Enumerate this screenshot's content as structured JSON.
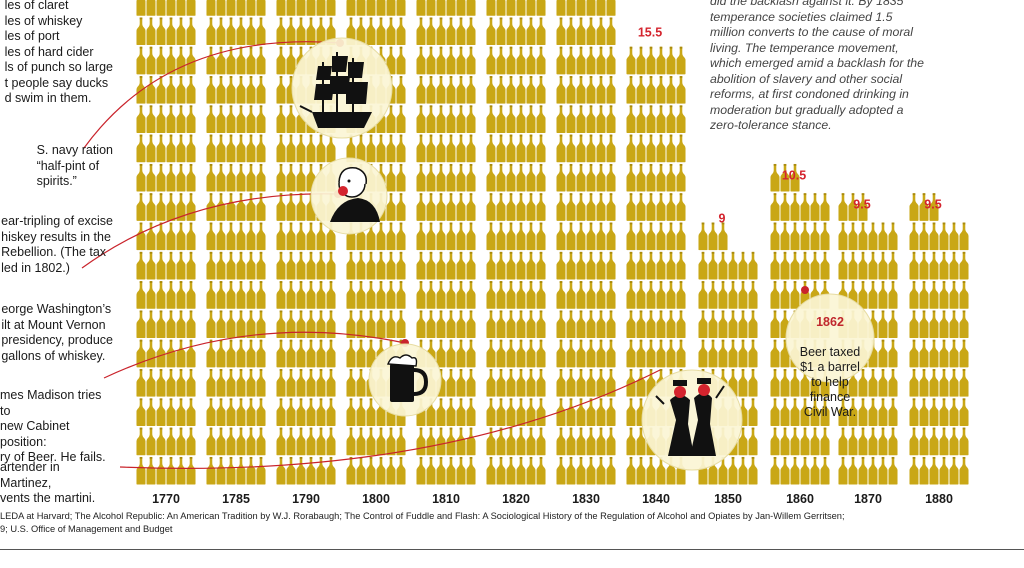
{
  "colors": {
    "bottle": "#c9a716",
    "bottle_dark": "#a88a0e",
    "label_red": "#d4242e",
    "line_red": "#c9232b",
    "circle_fill": "#fbf5d5",
    "text": "#1a1a1a"
  },
  "chart_data": {
    "type": "bar",
    "x": [
      "1770",
      "1785",
      "1790",
      "1800",
      "1810",
      "1820",
      "1830",
      "1840",
      "1850",
      "1860",
      "1870",
      "1880"
    ],
    "values": [
      null,
      null,
      null,
      null,
      null,
      null,
      null,
      15.5,
      9,
      10.5,
      9.5,
      9.5
    ],
    "value_labels": [
      "",
      "",
      "",
      "",
      "",
      "",
      "",
      "15.5",
      "9",
      "10.5",
      "9.5",
      "9.5"
    ],
    "note": "bars drawn as stacks of bottles"
  },
  "annotations": {
    "n1": "les of claret\nles of whiskey\nles of port\nles of hard cider\nls of punch so large\nt people say ducks\nd swim in them.",
    "n2": "S. navy ration\n“half-pint of\nspirits.”",
    "n3": "ear-tripling of excise\nhiskey results in the\nRebellion. (The tax\nled in 1802.)",
    "n4": "eorge Washington’s\nilt at Mount Vernon\npresidency, produce\ngallons of whiskey.",
    "n5": "mes Madison tries to\nnew Cabinet position:\nry of Beer. He fails.",
    "n6": "artender in Martinez,\nvents the martini.",
    "top_right": "did the backlash against it. By 1835\ntemperance societies claimed 1.5\nmillion converts to the cause of moral\nliving. The temperance movement,\nwhich emerged amid a backlash for the\nabolition of slavery and other social\nreforms, at first condoned drinking in\nmoderation but gradually adopted a\nzero-tolerance stance.",
    "beer_year": "1862",
    "beer_text": "Beer taxed\n$1 a barrel\nto help finance\nCivil War."
  },
  "source": "LEDA at Harvard; The Alcohol Republic: An American Tradition by W.J. Rorabaugh; The Control of Fuddle and Flash: A Sociological History of the Regulation of Alcohol and Opiates by Jan-Willem Gerritsen;\n9; U.S. Office of Management and Budget",
  "icons": [
    "ship-icon",
    "washington-icon",
    "beer-mug-icon",
    "drinkers-icon"
  ]
}
